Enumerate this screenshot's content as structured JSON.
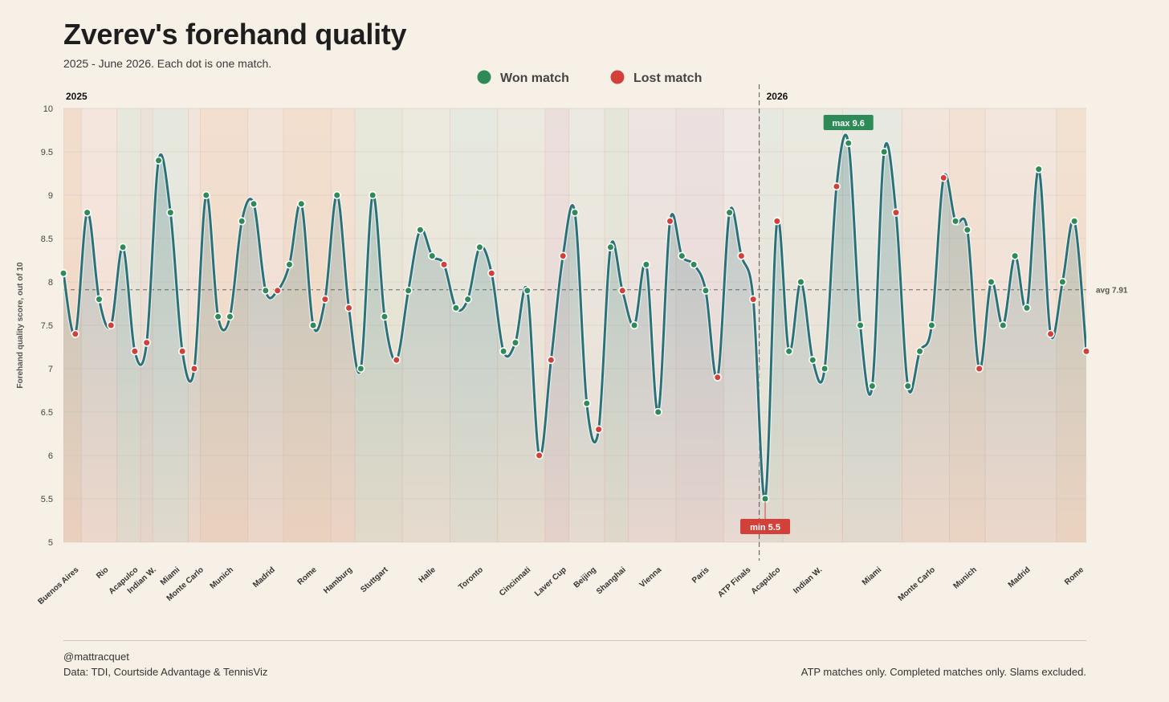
{
  "title": "Zverev's forehand quality",
  "subtitle": "2025 - June 2026. Each dot is one match.",
  "legend": [
    {
      "label": "Won match",
      "color": "#2e8b57"
    },
    {
      "label": "Lost match",
      "color": "#d1413a"
    }
  ],
  "footer": {
    "credit": "@mattracquet",
    "source": "Data: TDI, Courtside Advantage & TennisViz",
    "note": "ATP matches only. Completed matches only. Slams excluded."
  },
  "chart_data": {
    "type": "line",
    "ylabel": "Forehand quality score, out of 10",
    "ylim": [
      5,
      10
    ],
    "yticks": [
      5,
      5.5,
      6,
      6.5,
      7,
      7.5,
      8,
      8.5,
      9,
      9.5,
      10
    ],
    "average": {
      "value": 7.91,
      "label": "avg 7.91"
    },
    "year_labels": [
      "2025",
      "2026"
    ],
    "annotations": {
      "max_label": "max 9.6",
      "min_label": "min 5.5"
    },
    "colors": {
      "line": "#2b7178",
      "won": "#2e8b57",
      "lost": "#d1413a"
    },
    "tournaments": [
      {
        "name": "Buenos Aires",
        "matches": 2
      },
      {
        "name": "Rio",
        "matches": 3
      },
      {
        "name": "Acapulco",
        "matches": 2
      },
      {
        "name": "Indian W.",
        "matches": 1
      },
      {
        "name": "Miami",
        "matches": 3
      },
      {
        "name": "Monte Carlo",
        "matches": 1
      },
      {
        "name": "Munich",
        "matches": 4
      },
      {
        "name": "Madrid",
        "matches": 3
      },
      {
        "name": "Rome",
        "matches": 4
      },
      {
        "name": "Hamburg",
        "matches": 2
      },
      {
        "name": "Stuttgart",
        "matches": 4
      },
      {
        "name": "Halle",
        "matches": 4
      },
      {
        "name": "Toronto",
        "matches": 4
      },
      {
        "name": "Cincinnati",
        "matches": 4
      },
      {
        "name": "Laver Cup",
        "matches": 2
      },
      {
        "name": "Beijing",
        "matches": 3
      },
      {
        "name": "Shanghai",
        "matches": 2
      },
      {
        "name": "Vienna",
        "matches": 4
      },
      {
        "name": "Paris",
        "matches": 4
      },
      {
        "name": "ATP Finals",
        "matches": 3
      },
      {
        "name": "Acapulco",
        "matches": 2
      },
      {
        "name": "Indian W.",
        "matches": 5
      },
      {
        "name": "Miami",
        "matches": 5
      },
      {
        "name": "Monte Carlo",
        "matches": 4
      },
      {
        "name": "Munich",
        "matches": 3
      },
      {
        "name": "Madrid",
        "matches": 6
      },
      {
        "name": "Rome",
        "matches": 3
      }
    ],
    "points": [
      {
        "y": 8.1,
        "won": true
      },
      {
        "y": 7.4,
        "won": false
      },
      {
        "y": 8.8,
        "won": true
      },
      {
        "y": 7.8,
        "won": true
      },
      {
        "y": 7.5,
        "won": false
      },
      {
        "y": 8.4,
        "won": true
      },
      {
        "y": 7.2,
        "won": false
      },
      {
        "y": 7.3,
        "won": false
      },
      {
        "y": 9.4,
        "won": true
      },
      {
        "y": 8.8,
        "won": true
      },
      {
        "y": 7.2,
        "won": false
      },
      {
        "y": 7.0,
        "won": false
      },
      {
        "y": 9.0,
        "won": true
      },
      {
        "y": 7.6,
        "won": true
      },
      {
        "y": 7.6,
        "won": true
      },
      {
        "y": 8.7,
        "won": true
      },
      {
        "y": 8.9,
        "won": true
      },
      {
        "y": 7.9,
        "won": true
      },
      {
        "y": 7.9,
        "won": false
      },
      {
        "y": 8.2,
        "won": true
      },
      {
        "y": 8.9,
        "won": true
      },
      {
        "y": 7.5,
        "won": true
      },
      {
        "y": 7.8,
        "won": false
      },
      {
        "y": 9.0,
        "won": true
      },
      {
        "y": 7.7,
        "won": false
      },
      {
        "y": 7.0,
        "won": true
      },
      {
        "y": 9.0,
        "won": true
      },
      {
        "y": 7.6,
        "won": true
      },
      {
        "y": 7.1,
        "won": false
      },
      {
        "y": 7.9,
        "won": true
      },
      {
        "y": 8.6,
        "won": true
      },
      {
        "y": 8.3,
        "won": true
      },
      {
        "y": 8.2,
        "won": false
      },
      {
        "y": 7.7,
        "won": true
      },
      {
        "y": 7.8,
        "won": true
      },
      {
        "y": 8.4,
        "won": true
      },
      {
        "y": 8.1,
        "won": false
      },
      {
        "y": 7.2,
        "won": true
      },
      {
        "y": 7.3,
        "won": true
      },
      {
        "y": 7.9,
        "won": true
      },
      {
        "y": 6.0,
        "won": false
      },
      {
        "y": 7.1,
        "won": false
      },
      {
        "y": 8.3,
        "won": false
      },
      {
        "y": 8.8,
        "won": true
      },
      {
        "y": 6.6,
        "won": true
      },
      {
        "y": 6.3,
        "won": false
      },
      {
        "y": 8.4,
        "won": true
      },
      {
        "y": 7.9,
        "won": false
      },
      {
        "y": 7.5,
        "won": true
      },
      {
        "y": 8.2,
        "won": true
      },
      {
        "y": 6.5,
        "won": true
      },
      {
        "y": 8.7,
        "won": false
      },
      {
        "y": 8.3,
        "won": true
      },
      {
        "y": 8.2,
        "won": true
      },
      {
        "y": 7.9,
        "won": true
      },
      {
        "y": 6.9,
        "won": false
      },
      {
        "y": 8.8,
        "won": true
      },
      {
        "y": 8.3,
        "won": false
      },
      {
        "y": 7.8,
        "won": false
      },
      {
        "y": 5.5,
        "won": true
      },
      {
        "y": 8.7,
        "won": false
      },
      {
        "y": 7.2,
        "won": true
      },
      {
        "y": 8.0,
        "won": true
      },
      {
        "y": 7.1,
        "won": true
      },
      {
        "y": 7.0,
        "won": true
      },
      {
        "y": 9.1,
        "won": false
      },
      {
        "y": 9.6,
        "won": true
      },
      {
        "y": 7.5,
        "won": true
      },
      {
        "y": 6.8,
        "won": true
      },
      {
        "y": 9.5,
        "won": true
      },
      {
        "y": 8.8,
        "won": false
      },
      {
        "y": 6.8,
        "won": true
      },
      {
        "y": 7.2,
        "won": true
      },
      {
        "y": 7.5,
        "won": true
      },
      {
        "y": 9.2,
        "won": false
      },
      {
        "y": 8.7,
        "won": true
      },
      {
        "y": 8.6,
        "won": true
      },
      {
        "y": 7.0,
        "won": false
      },
      {
        "y": 8.0,
        "won": true
      },
      {
        "y": 7.5,
        "won": true
      },
      {
        "y": 8.3,
        "won": true
      },
      {
        "y": 7.7,
        "won": true
      },
      {
        "y": 9.3,
        "won": true
      },
      {
        "y": 7.4,
        "won": false
      },
      {
        "y": 8.0,
        "won": true
      },
      {
        "y": 8.7,
        "won": true
      },
      {
        "y": 7.2,
        "won": false
      }
    ]
  }
}
